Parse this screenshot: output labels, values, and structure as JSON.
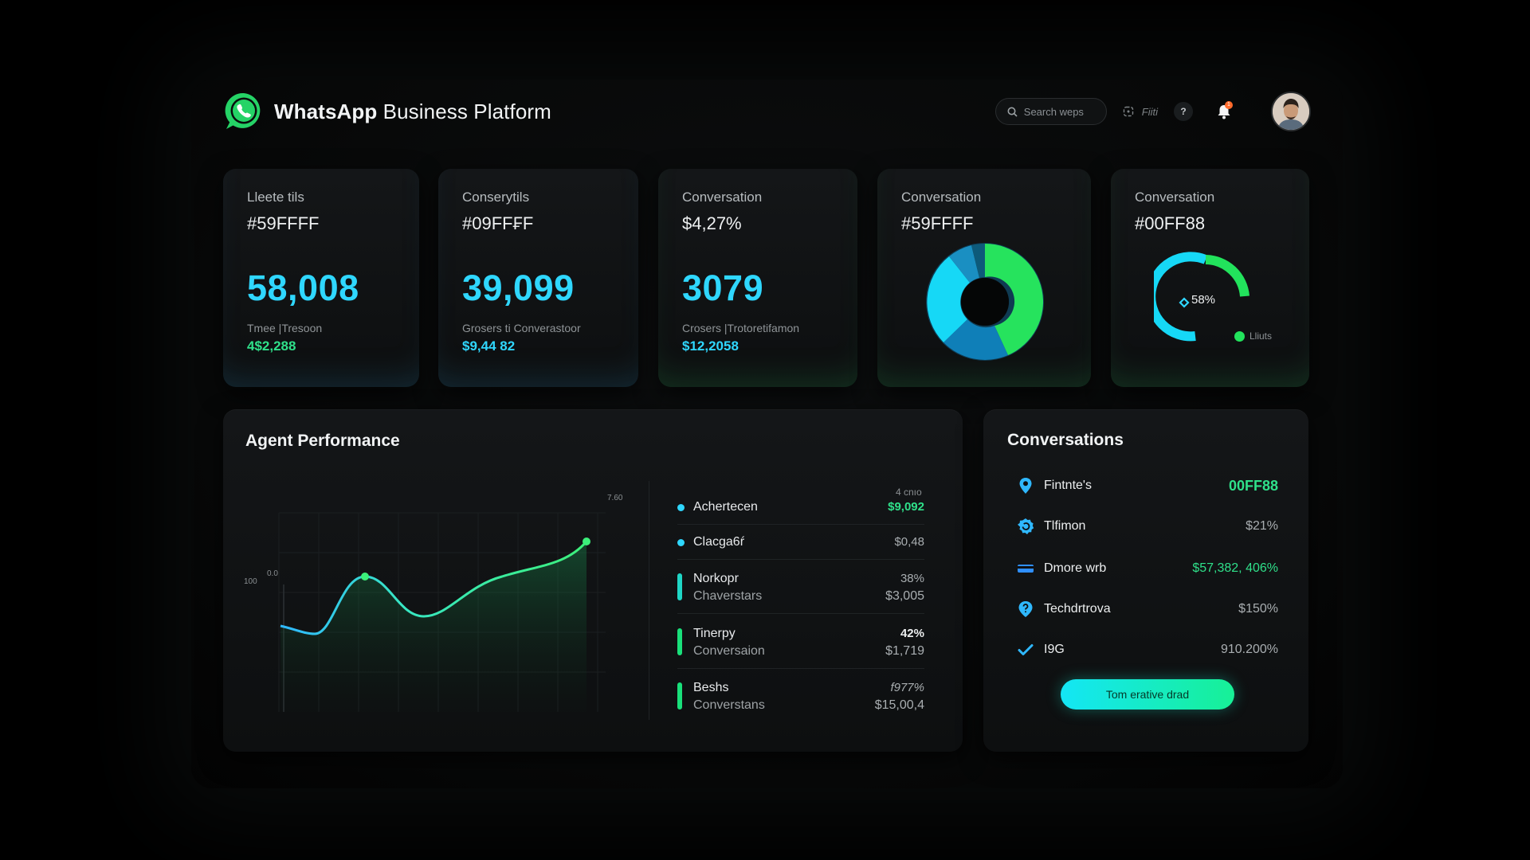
{
  "header": {
    "brand_bold": "WhatsApp",
    "brand_rest": " Business Platform",
    "search_placeholder": "Search weps",
    "filter_label": "Fiiti",
    "help_label": "?",
    "notification_count": "1"
  },
  "colors": {
    "accent_cyan": "#2FD7FF",
    "accent_green": "#19E07A",
    "card_bg": "#141618"
  },
  "stats": [
    {
      "label": "Lleete tils",
      "code": "#59FFFF",
      "value": "58,008",
      "sub": "Tmee |Tresoon",
      "subval": "4$2,288",
      "subcolor": "#2fe08a"
    },
    {
      "label": "Conserytils",
      "code": "#09FF₣F",
      "value": "39,099",
      "sub": "Grosers ti Converastoor",
      "subval": "$9,44 82",
      "subcolor": "#2fd7ff"
    },
    {
      "label": "Conversation",
      "code": "$4,27%",
      "value": "3079",
      "sub": "Crosers |Trotoretifamon",
      "subval": "$12,2058",
      "subcolor": "#2fd7ff"
    }
  ],
  "donut_card": {
    "label": "Conversation",
    "code": "#59FFFF"
  },
  "gauge_card": {
    "label": "Conversation",
    "code": "#00FF88",
    "percent_label": "58%",
    "percent": 58,
    "legend": "Lliuts"
  },
  "agent_performance": {
    "title": "Agent Performance",
    "chart_label_top": "7.60",
    "chart_label_left": "100",
    "chart_label_left2": "0.0",
    "header_right": "4 cnıo",
    "rows": [
      {
        "name": "Achertecen",
        "meta": "",
        "v1": "$9,092",
        "v2": "",
        "v1color": "#2fe08a",
        "marker": "dot"
      },
      {
        "name": "Clacga6ŕ",
        "meta": "",
        "v1": "$0,48",
        "v2": "",
        "v1color": "#a9aeb1",
        "marker": "dot"
      },
      {
        "name": "Norkopr",
        "meta": "Chaverstars",
        "v1": "38%",
        "v2": "$3,005",
        "v1color": "#a9aeb1",
        "marker": "bar-cyan"
      },
      {
        "name": "Tinerpy",
        "meta": "Conversaion",
        "v1": "42%",
        "v2": "$1,719",
        "v1color": "#eceeef",
        "marker": "bar"
      },
      {
        "name": "Beshs",
        "meta": "Converstans",
        "v1": "f977%",
        "v2": "$15,00,4",
        "v1color": "#a9aeb1",
        "marker": "bar"
      }
    ]
  },
  "conversations": {
    "title": "Conversations",
    "rows": [
      {
        "icon": "location-pin-icon",
        "name": "Fintnte's",
        "value": "00FF88",
        "valcolor": "#2fe08a",
        "big": true
      },
      {
        "icon": "refresh-badge-icon",
        "name": "Tlfimon",
        "value": "$21%",
        "valcolor": "#a9aeb1"
      },
      {
        "icon": "card-icon",
        "name": "Dmore wrb",
        "value": "$57,382, 406%",
        "valcolor": "#2fe08a"
      },
      {
        "icon": "help-pin-icon",
        "name": "Techdrtrova",
        "value": "$150%",
        "valcolor": "#a9aeb1"
      },
      {
        "icon": "check-icon",
        "name": "I9G",
        "value": "910.200%",
        "valcolor": "#a9aeb1"
      }
    ],
    "button_label": "Tom erative drad"
  }
}
